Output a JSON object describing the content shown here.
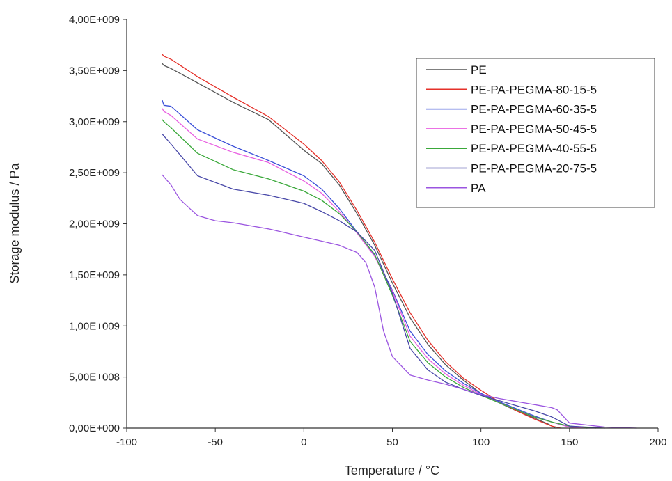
{
  "chart_data": {
    "type": "line",
    "title": "",
    "xlabel": "Temperature / °C",
    "ylabel": "Storage modulus / Pa",
    "xlim": [
      -100,
      200
    ],
    "ylim": [
      0,
      4000000000
    ],
    "x_ticks": [
      {
        "value": -100,
        "label": "-100"
      },
      {
        "value": -50,
        "label": "-50"
      },
      {
        "value": 0,
        "label": "0"
      },
      {
        "value": 50,
        "label": "50"
      },
      {
        "value": 100,
        "label": "100"
      },
      {
        "value": 150,
        "label": "150"
      },
      {
        "value": 200,
        "label": "200"
      }
    ],
    "y_ticks": [
      {
        "value": 0,
        "label": "0,00E+000"
      },
      {
        "value": 500000000,
        "label": "5,00E+008"
      },
      {
        "value": 1000000000,
        "label": "1,00E+009"
      },
      {
        "value": 1500000000,
        "label": "1,50E+009"
      },
      {
        "value": 2000000000,
        "label": "2,00E+009"
      },
      {
        "value": 2500000000,
        "label": "2,50E+009"
      },
      {
        "value": 3000000000,
        "label": "3,00E+009"
      },
      {
        "value": 3500000000,
        "label": "3,50E+009"
      },
      {
        "value": 4000000000,
        "label": "4,00E+009"
      }
    ],
    "grid": false,
    "legend_position": "top-right",
    "series": [
      {
        "name": "PE",
        "color": "#555555",
        "x": [
          -80,
          -79,
          -75,
          -60,
          -40,
          -20,
          0,
          10,
          20,
          30,
          40,
          50,
          60,
          70,
          80,
          90,
          100,
          110,
          120,
          130,
          138,
          142
        ],
        "y": [
          3570000000,
          3550000000,
          3520000000,
          3380000000,
          3190000000,
          3020000000,
          2720000000,
          2590000000,
          2380000000,
          2100000000,
          1790000000,
          1420000000,
          1080000000,
          820000000,
          620000000,
          470000000,
          340000000,
          250000000,
          170000000,
          100000000,
          40000000,
          0
        ]
      },
      {
        "name": "PE-PA-PEGMA-80-15-5",
        "color": "#e5312a",
        "x": [
          -80,
          -79,
          -75,
          -60,
          -40,
          -20,
          0,
          10,
          20,
          30,
          40,
          50,
          60,
          70,
          80,
          90,
          100,
          110,
          120,
          130,
          140,
          145
        ],
        "y": [
          3660000000,
          3640000000,
          3610000000,
          3440000000,
          3240000000,
          3050000000,
          2780000000,
          2620000000,
          2410000000,
          2130000000,
          1820000000,
          1460000000,
          1130000000,
          860000000,
          650000000,
          490000000,
          370000000,
          260000000,
          170000000,
          90000000,
          20000000,
          0
        ]
      },
      {
        "name": "PE-PA-PEGMA-60-35-5",
        "color": "#3a4fd8",
        "x": [
          -80,
          -79,
          -75,
          -60,
          -40,
          -20,
          0,
          10,
          20,
          30,
          40,
          50,
          60,
          70,
          80,
          90,
          100,
          110,
          120,
          130,
          140,
          150,
          160
        ],
        "y": [
          3210000000,
          3160000000,
          3150000000,
          2920000000,
          2760000000,
          2620000000,
          2470000000,
          2340000000,
          2150000000,
          1920000000,
          1690000000,
          1350000000,
          950000000,
          720000000,
          560000000,
          440000000,
          340000000,
          260000000,
          190000000,
          120000000,
          60000000,
          10000000,
          0
        ]
      },
      {
        "name": "PE-PA-PEGMA-50-45-5",
        "color": "#e85de0",
        "x": [
          -80,
          -79,
          -75,
          -60,
          -40,
          -20,
          0,
          10,
          20,
          30,
          40,
          50,
          60,
          70,
          80,
          90,
          100,
          110,
          120,
          130,
          140,
          150,
          160
        ],
        "y": [
          3130000000,
          3100000000,
          3060000000,
          2830000000,
          2700000000,
          2600000000,
          2420000000,
          2300000000,
          2120000000,
          1910000000,
          1680000000,
          1340000000,
          900000000,
          680000000,
          530000000,
          420000000,
          330000000,
          250000000,
          180000000,
          110000000,
          60000000,
          10000000,
          0
        ]
      },
      {
        "name": "PE-PA-PEGMA-40-55-5",
        "color": "#3aa83a",
        "x": [
          -80,
          -79,
          -75,
          -60,
          -40,
          -20,
          0,
          10,
          20,
          30,
          40,
          50,
          60,
          70,
          80,
          90,
          100,
          110,
          120,
          130,
          140,
          150,
          165
        ],
        "y": [
          3020000000,
          3000000000,
          2940000000,
          2690000000,
          2530000000,
          2440000000,
          2320000000,
          2230000000,
          2100000000,
          1920000000,
          1700000000,
          1300000000,
          850000000,
          640000000,
          500000000,
          400000000,
          320000000,
          250000000,
          180000000,
          110000000,
          60000000,
          20000000,
          0
        ]
      },
      {
        "name": "PE-PA-PEGMA-20-75-5",
        "color": "#4848a8",
        "x": [
          -80,
          -79,
          -75,
          -60,
          -40,
          -20,
          0,
          10,
          20,
          30,
          40,
          50,
          60,
          70,
          80,
          90,
          100,
          110,
          120,
          130,
          140,
          150,
          170
        ],
        "y": [
          2880000000,
          2860000000,
          2780000000,
          2470000000,
          2340000000,
          2280000000,
          2200000000,
          2120000000,
          2030000000,
          1920000000,
          1740000000,
          1320000000,
          780000000,
          570000000,
          450000000,
          380000000,
          320000000,
          270000000,
          220000000,
          170000000,
          110000000,
          20000000,
          0
        ]
      },
      {
        "name": "PA",
        "color": "#9b55e0",
        "x": [
          -80,
          -79,
          -75,
          -70,
          -60,
          -50,
          -40,
          -20,
          0,
          10,
          20,
          30,
          35,
          40,
          45,
          50,
          60,
          70,
          80,
          90,
          100,
          110,
          120,
          130,
          140,
          143,
          150,
          170,
          188
        ],
        "y": [
          2480000000,
          2460000000,
          2380000000,
          2240000000,
          2080000000,
          2030000000,
          2010000000,
          1950000000,
          1870000000,
          1830000000,
          1790000000,
          1720000000,
          1620000000,
          1380000000,
          950000000,
          700000000,
          520000000,
          470000000,
          430000000,
          380000000,
          330000000,
          290000000,
          260000000,
          230000000,
          200000000,
          180000000,
          50000000,
          10000000,
          0
        ]
      }
    ]
  }
}
